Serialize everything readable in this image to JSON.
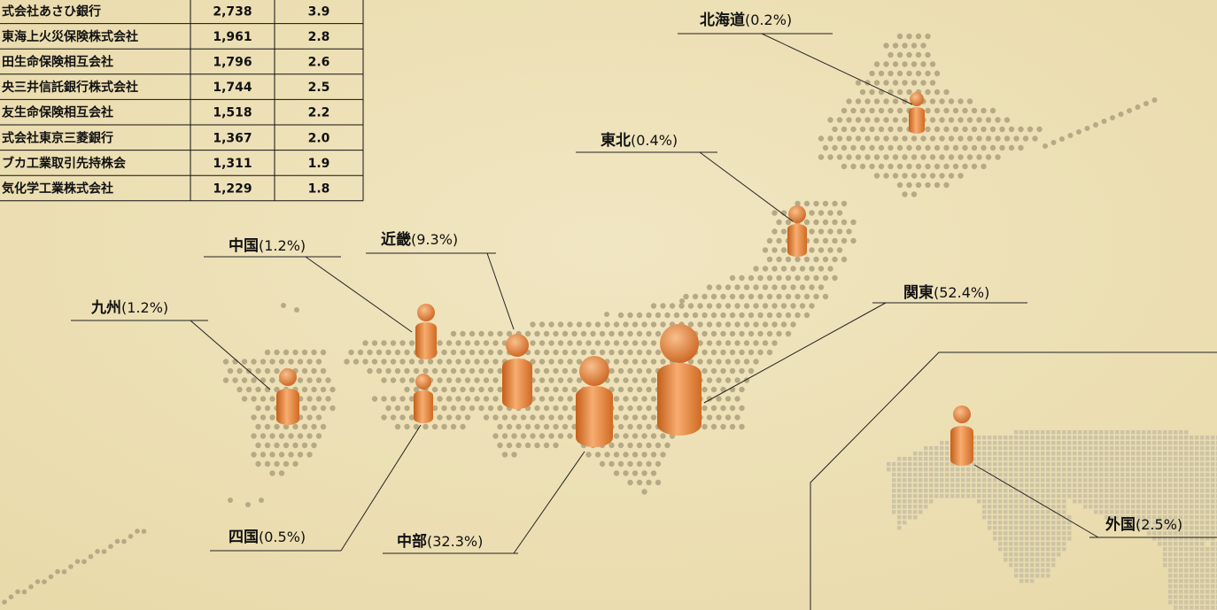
{
  "table": {
    "rows": [
      [
        "式会社あさひ銀行",
        "2,738",
        "3.9"
      ],
      [
        "東海上火災保険株式会社",
        "1,961",
        "2.8"
      ],
      [
        "田生命保険相互会社",
        "1,796",
        "2.6"
      ],
      [
        "央三井信託銀行株式会社",
        "1,744",
        "2.5"
      ],
      [
        "友生命保険相互会社",
        "1,518",
        "2.2"
      ],
      [
        "式会社東京三菱銀行",
        "1,367",
        "2.0"
      ],
      [
        "ブカ工業取引先持株会",
        "1,311",
        "1.9"
      ],
      [
        "気化学工業株式会社",
        "1,229",
        "1.8"
      ]
    ]
  },
  "regions": [
    {
      "name": "北海道",
      "share": "(0.2%)"
    },
    {
      "name": "東北",
      "share": "(0.4%)"
    },
    {
      "name": "関東",
      "share": "(52.4%)"
    },
    {
      "name": "中部",
      "share": "(32.3%)"
    },
    {
      "name": "近畿",
      "share": "(9.3%)"
    },
    {
      "name": "中国",
      "share": "(1.2%)"
    },
    {
      "name": "四国",
      "share": "(0.5%)"
    },
    {
      "name": "九州",
      "share": "(1.2%)"
    },
    {
      "name": "外国",
      "share": "(2.5%)"
    }
  ]
}
